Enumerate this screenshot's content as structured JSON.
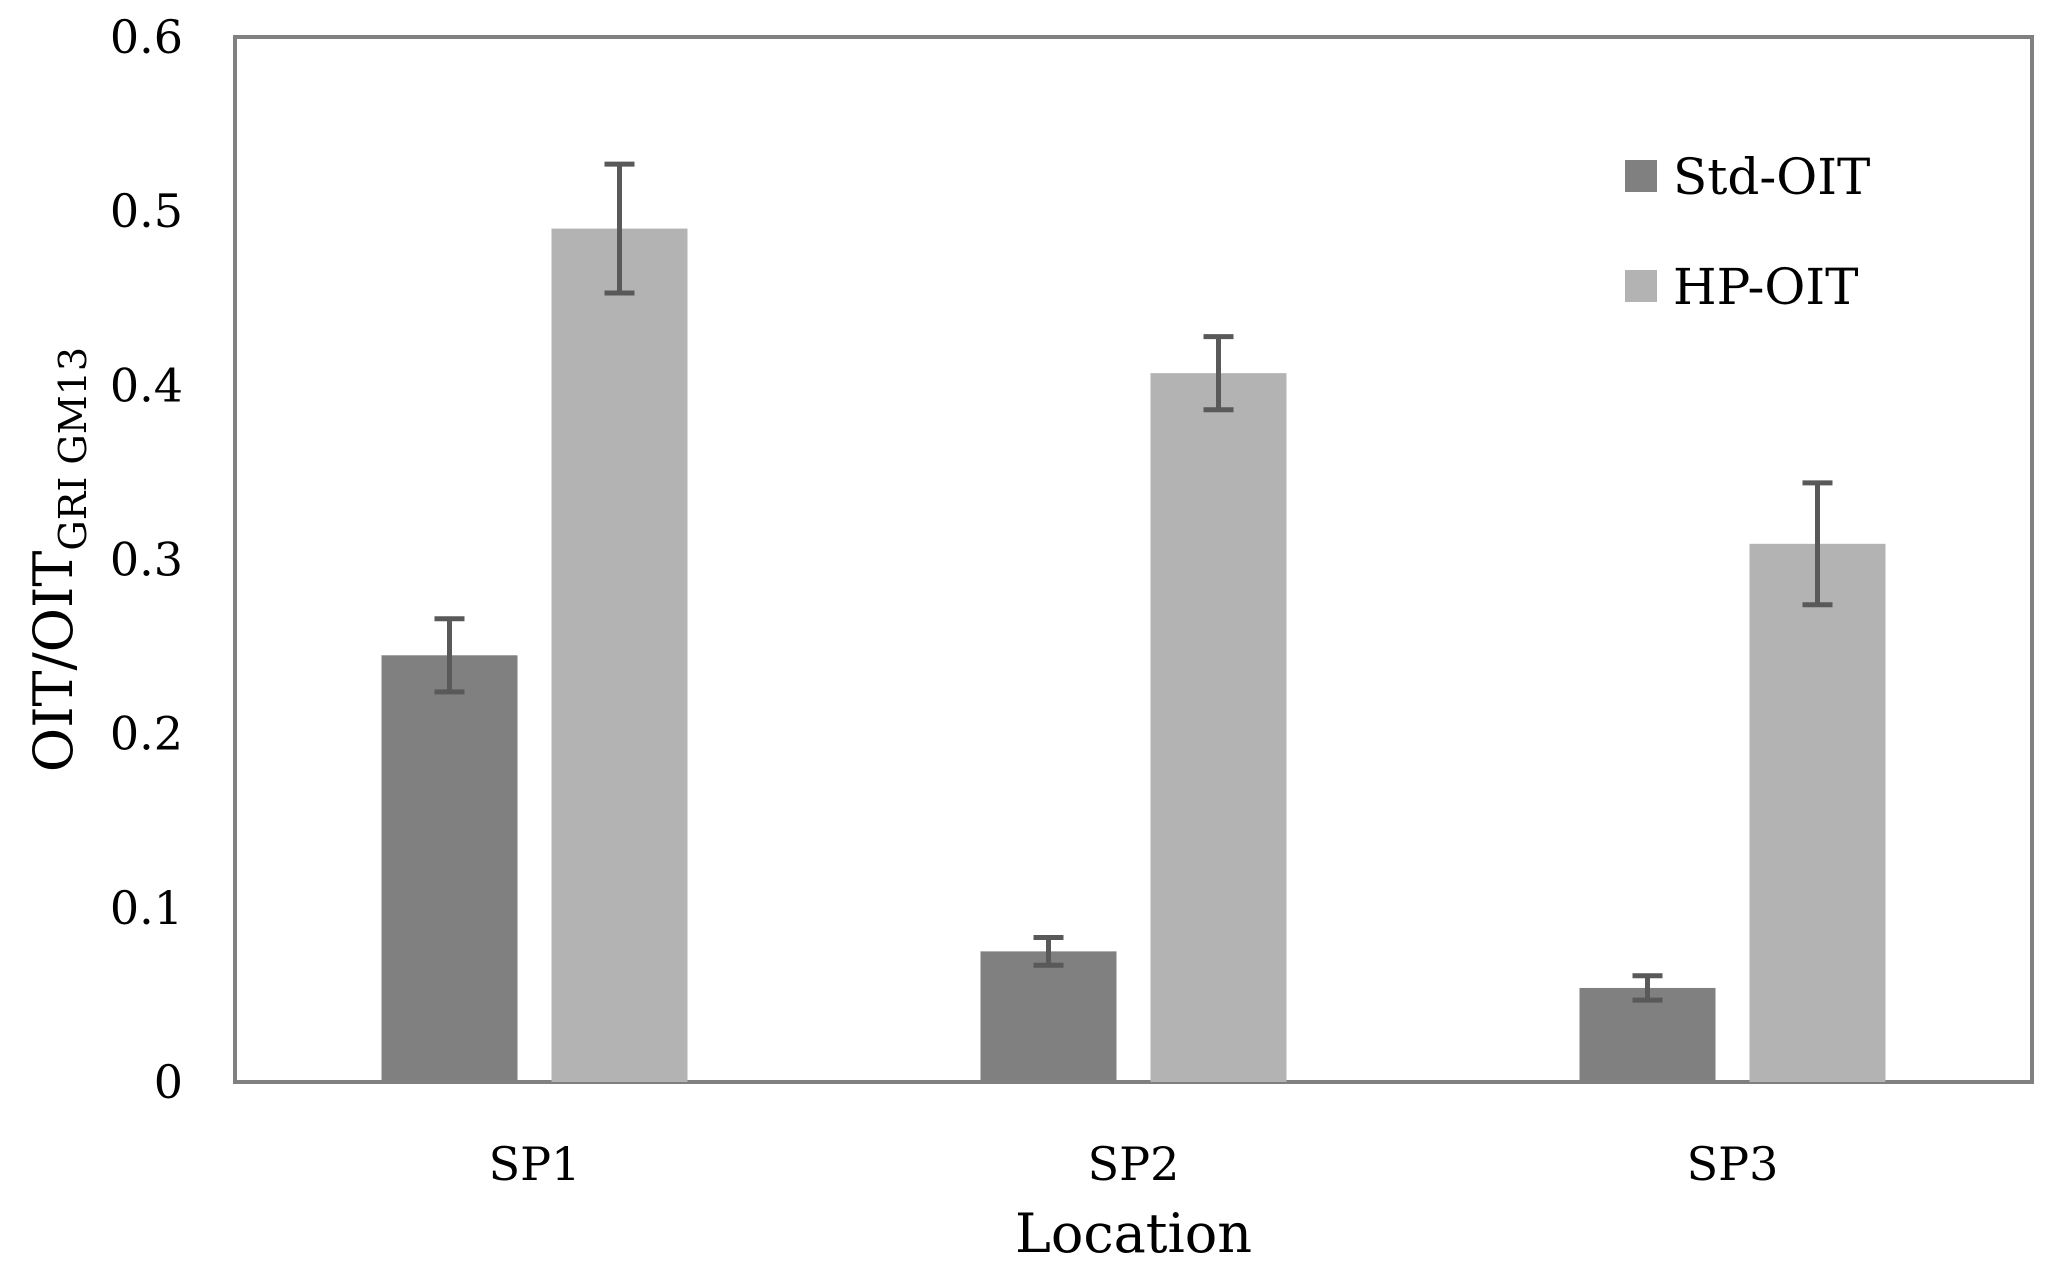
{
  "chart_data": {
    "type": "bar",
    "categories": [
      "SP1",
      "SP2",
      "SP3"
    ],
    "series": [
      {
        "name": "Std-OIT",
        "values": [
          0.245,
          0.075,
          0.054
        ],
        "errors": [
          0.021,
          0.008,
          0.007
        ],
        "color": "#808080"
      },
      {
        "name": "HP-OIT",
        "values": [
          0.49,
          0.407,
          0.309
        ],
        "errors": [
          0.037,
          0.021,
          0.035
        ],
        "color": "#b3b3b3"
      }
    ],
    "xlabel": "Location",
    "ylabel": {
      "main": "OIT/OIT",
      "subscript": "GRI GM13"
    },
    "ylim": [
      0,
      0.6
    ],
    "yticks": [
      "0",
      "0.1",
      "0.2",
      "0.3",
      "0.4",
      "0.5",
      "0.6"
    ],
    "grid": false,
    "legend_position": "top-right",
    "error_bar_color": "#595959",
    "frame_color": "#808080"
  }
}
